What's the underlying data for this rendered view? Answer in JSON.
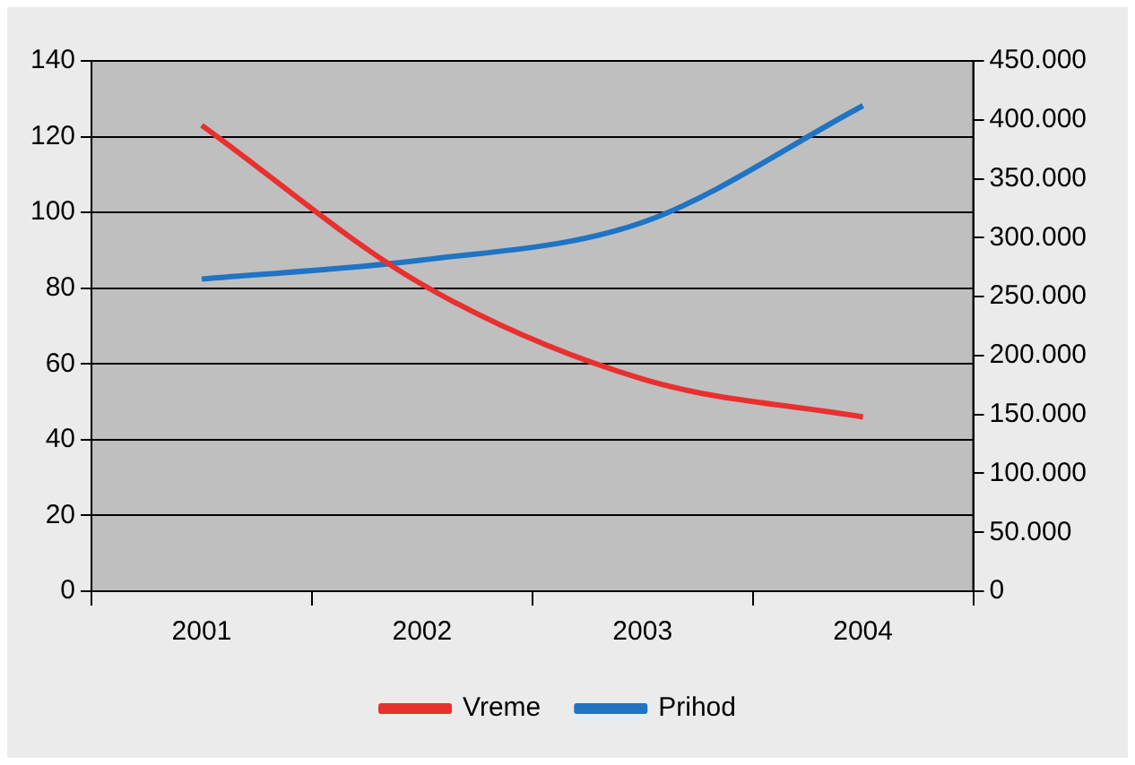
{
  "chart_data": {
    "type": "line",
    "categories": [
      "2001",
      "2002",
      "2003",
      "2004"
    ],
    "series": [
      {
        "name": "Vreme",
        "color": "#e8312f",
        "values": [
          123,
          81,
          56,
          46
        ]
      },
      {
        "name": "Prihod",
        "color": "#1f74c4",
        "values": [
          265000,
          281000,
          313000,
          412000
        ],
        "axis": "y2"
      }
    ],
    "ylim": [
      0,
      140
    ],
    "yticks": [
      0,
      20,
      40,
      60,
      80,
      100,
      120,
      140
    ],
    "y2lim": [
      0,
      450000
    ],
    "y2ticks": [
      {
        "value": 0,
        "label": "0"
      },
      {
        "value": 50000,
        "label": "50.000"
      },
      {
        "value": 100000,
        "label": "100.000"
      },
      {
        "value": 150000,
        "label": "150.000"
      },
      {
        "value": 200000,
        "label": "200.000"
      },
      {
        "value": 250000,
        "label": "250.000"
      },
      {
        "value": 300000,
        "label": "300.000"
      },
      {
        "value": 350000,
        "label": "350.000"
      },
      {
        "value": 400000,
        "label": "400.000"
      },
      {
        "value": 450000,
        "label": "450.000"
      }
    ],
    "grid": "y",
    "legend": "bottom",
    "marker": "none",
    "line_style": "solid"
  }
}
